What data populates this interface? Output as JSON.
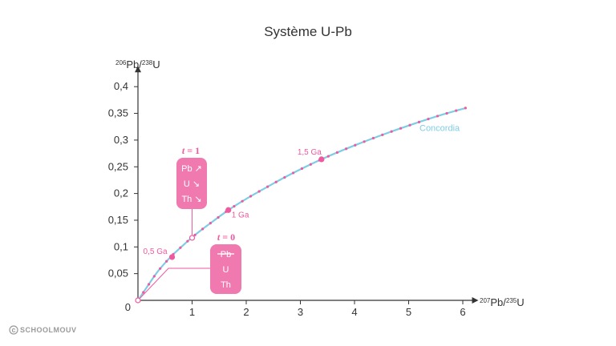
{
  "chart_data": {
    "type": "line",
    "title": "Système U-Pb",
    "xlabel": {
      "sup": "207",
      "base": "Pb/",
      "sup2": "235",
      "tail": "U"
    },
    "ylabel": {
      "sup": "206",
      "base": "Pb/",
      "sup2": "238",
      "tail": "U"
    },
    "xlim": [
      0,
      6.2
    ],
    "ylim": [
      0,
      0.43
    ],
    "x_ticks": [
      1,
      2,
      3,
      4,
      5,
      6
    ],
    "x_tick_labels": [
      "1",
      "2",
      "3",
      "4",
      "5",
      "6"
    ],
    "y_ticks": [
      0.05,
      0.1,
      0.15,
      0.2,
      0.25,
      0.3,
      0.35,
      0.4
    ],
    "y_tick_labels": [
      "0,05",
      "0,1",
      "0,15",
      "0,2",
      "0,25",
      "0,3",
      "0,35",
      "0,4"
    ],
    "origin_label": "0",
    "series": [
      {
        "name": "Concordia",
        "x": [
          0,
          0.1,
          0.2,
          0.35,
          0.5,
          0.65,
          0.8,
          1.0,
          1.2,
          1.4,
          1.67,
          2.0,
          2.4,
          2.8,
          3.39,
          4.0,
          4.6,
          5.2,
          5.6,
          6.05
        ],
        "y": [
          0,
          0.015,
          0.03,
          0.052,
          0.07,
          0.086,
          0.1,
          0.118,
          0.134,
          0.149,
          0.169,
          0.19,
          0.213,
          0.235,
          0.264,
          0.29,
          0.313,
          0.334,
          0.347,
          0.36
        ]
      }
    ],
    "age_markers": [
      {
        "label": "0,5 Ga",
        "x": 0.63,
        "y": 0.081
      },
      {
        "label": "1 Ga",
        "x": 1.67,
        "y": 0.169
      },
      {
        "label": "1,5 Ga",
        "x": 3.39,
        "y": 0.264
      }
    ],
    "sample_point": {
      "x": 1.0,
      "y": 0.117
    },
    "annotations": {
      "t1": {
        "t": "t",
        "eq": " = 1",
        "lines": [
          "Pb ↗",
          "U ↘",
          "Th ↘"
        ]
      },
      "t0": {
        "t": "t",
        "eq": " = 0",
        "lines": [
          "Pb",
          "U",
          "Th"
        ]
      }
    },
    "colors": {
      "curve": "#7ecde6",
      "accent": "#ee5a9e",
      "box": "#f07ab0",
      "axis": "#333333"
    }
  },
  "brand": {
    "icon": "copyright-icon",
    "name": "SCHOOLMOUV"
  }
}
